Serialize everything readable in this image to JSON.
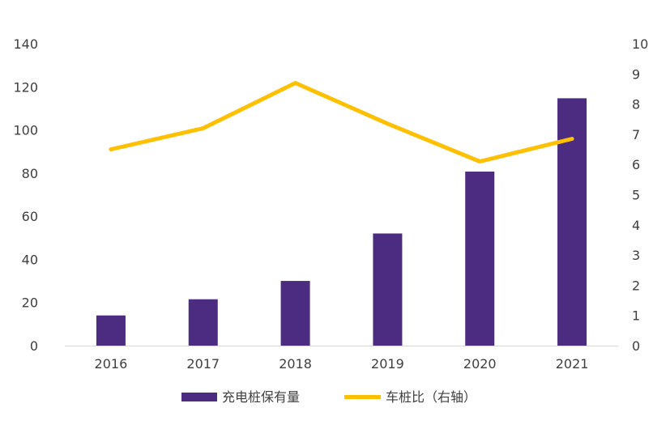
{
  "chart_data": {
    "type": "bar",
    "categories": [
      "2016",
      "2017",
      "2018",
      "2019",
      "2020",
      "2021"
    ],
    "series": [
      {
        "name": "充电桩保有量",
        "type": "bar",
        "axis": "left",
        "color": "#4B2C80",
        "values": [
          14,
          21.5,
          30,
          52,
          80.7,
          114.7
        ]
      },
      {
        "name": "车桩比（右轴）",
        "type": "line",
        "axis": "right",
        "color": "#FFC000",
        "values": [
          6.5,
          7.2,
          8.7,
          7.35,
          6.1,
          6.85
        ]
      }
    ],
    "y_left": {
      "min": 0,
      "max": 140,
      "ticks": [
        0,
        20,
        40,
        60,
        80,
        100,
        120,
        140
      ]
    },
    "y_right": {
      "min": 0,
      "max": 10,
      "ticks": [
        0,
        1,
        2,
        3,
        4,
        5,
        6,
        7,
        8,
        9,
        10
      ]
    },
    "grid": false,
    "legend_position": "bottom"
  }
}
